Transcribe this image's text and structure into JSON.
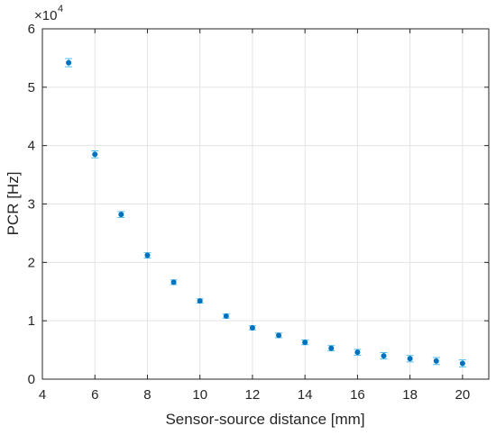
{
  "chart_data": {
    "type": "scatter",
    "title": "",
    "xlabel": "Sensor-source distance [mm]",
    "ylabel": "PCR [Hz]",
    "y_exponent_base": "×10",
    "y_exponent_power": "4",
    "xlim": [
      4,
      21
    ],
    "ylim": [
      0,
      6
    ],
    "y_scale_factor": 10000,
    "x_ticks": [
      4,
      6,
      8,
      10,
      12,
      14,
      16,
      18,
      20
    ],
    "y_ticks": [
      0,
      1,
      2,
      3,
      4,
      5,
      6
    ],
    "grid": true,
    "legend": "none",
    "marker_color": "#0072BD",
    "errorbar_color": "#4DBEEE",
    "series": [
      {
        "x": [
          5,
          6,
          7,
          8,
          9,
          10,
          11,
          12,
          13,
          14,
          15,
          16,
          17,
          18,
          19,
          20
        ],
        "y": [
          54200,
          38500,
          28200,
          21200,
          16600,
          13400,
          10800,
          8800,
          7500,
          6300,
          5300,
          4600,
          4000,
          3500,
          3100,
          2700
        ],
        "err": [
          700,
          600,
          500,
          450,
          400,
          350,
          350,
          350,
          400,
          400,
          450,
          500,
          550,
          550,
          600,
          600
        ]
      }
    ]
  }
}
